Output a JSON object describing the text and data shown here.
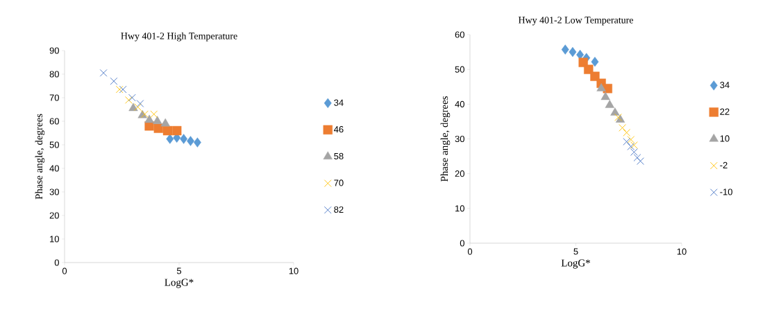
{
  "chart_data": [
    {
      "type": "scatter",
      "title": "Hwy 401-2 High Temperature",
      "xlabel": "LogG*",
      "ylabel": "Phase angle, degrees",
      "xlim": [
        0,
        10
      ],
      "xticks": [
        0,
        5,
        10
      ],
      "ylim": [
        0,
        90
      ],
      "yticks": [
        0,
        10,
        20,
        30,
        40,
        50,
        60,
        70,
        80,
        90
      ],
      "grid": false,
      "legend": "right",
      "series": [
        {
          "name": "34",
          "color": "#5b9bd5",
          "marker": "diamond",
          "x": [
            4.6,
            4.9,
            5.2,
            5.5,
            5.8
          ],
          "values": [
            52.5,
            53,
            52.5,
            51.6,
            51
          ]
        },
        {
          "name": "46",
          "color": "#ed7d31",
          "marker": "square",
          "x": [
            3.7,
            4.1,
            4.5,
            4.9
          ],
          "values": [
            58,
            57,
            56,
            56
          ]
        },
        {
          "name": "58",
          "color": "#a5a5a5",
          "marker": "triangle",
          "x": [
            3.0,
            3.4,
            3.7,
            4.05,
            4.4
          ],
          "values": [
            65.5,
            62.5,
            60.5,
            60,
            59
          ]
        },
        {
          "name": "70",
          "color": "#ffc000",
          "marker": "cross",
          "x": [
            2.4,
            2.8,
            3.2,
            3.5,
            3.9
          ],
          "values": [
            73.5,
            69,
            66,
            63,
            63
          ]
        },
        {
          "name": "82",
          "color": "#4472c4",
          "marker": "cross",
          "x": [
            1.7,
            2.15,
            2.55,
            2.95,
            3.3
          ],
          "values": [
            80.5,
            77,
            73.5,
            70,
            67.5
          ]
        }
      ]
    },
    {
      "type": "scatter",
      "title": "Hwy 401-2 Low Temperature",
      "xlabel": "LogG*",
      "ylabel": "Phase angle, degrees",
      "xlim": [
        0,
        10
      ],
      "xticks": [
        0,
        5,
        10
      ],
      "ylim": [
        0,
        60
      ],
      "yticks": [
        0,
        10,
        20,
        30,
        40,
        50,
        60
      ],
      "grid": false,
      "legend": "right",
      "series": [
        {
          "name": "34",
          "color": "#5b9bd5",
          "marker": "diamond",
          "x": [
            4.5,
            4.85,
            5.2,
            5.5,
            5.9
          ],
          "values": [
            55.7,
            55,
            54.2,
            53.3,
            52.2
          ]
        },
        {
          "name": "22",
          "color": "#ed7d31",
          "marker": "square",
          "x": [
            5.35,
            5.6,
            5.9,
            6.2,
            6.5
          ],
          "values": [
            52,
            50,
            48,
            46,
            44.5
          ]
        },
        {
          "name": "10",
          "color": "#a5a5a5",
          "marker": "triangle",
          "x": [
            6.2,
            6.4,
            6.6,
            6.85,
            7.1
          ],
          "values": [
            44.5,
            42,
            39.7,
            37.5,
            35.5
          ]
        },
        {
          "name": "-2",
          "color": "#ffc000",
          "marker": "cross",
          "x": [
            7.0,
            7.2,
            7.4,
            7.6,
            7.75
          ],
          "values": [
            36.2,
            33.2,
            31.8,
            29.8,
            28.2
          ]
        },
        {
          "name": "-10",
          "color": "#4472c4",
          "marker": "cross",
          "x": [
            7.4,
            7.6,
            7.75,
            7.9,
            8.05
          ],
          "values": [
            29.2,
            27.8,
            26.2,
            24.6,
            23.6
          ]
        }
      ]
    }
  ]
}
